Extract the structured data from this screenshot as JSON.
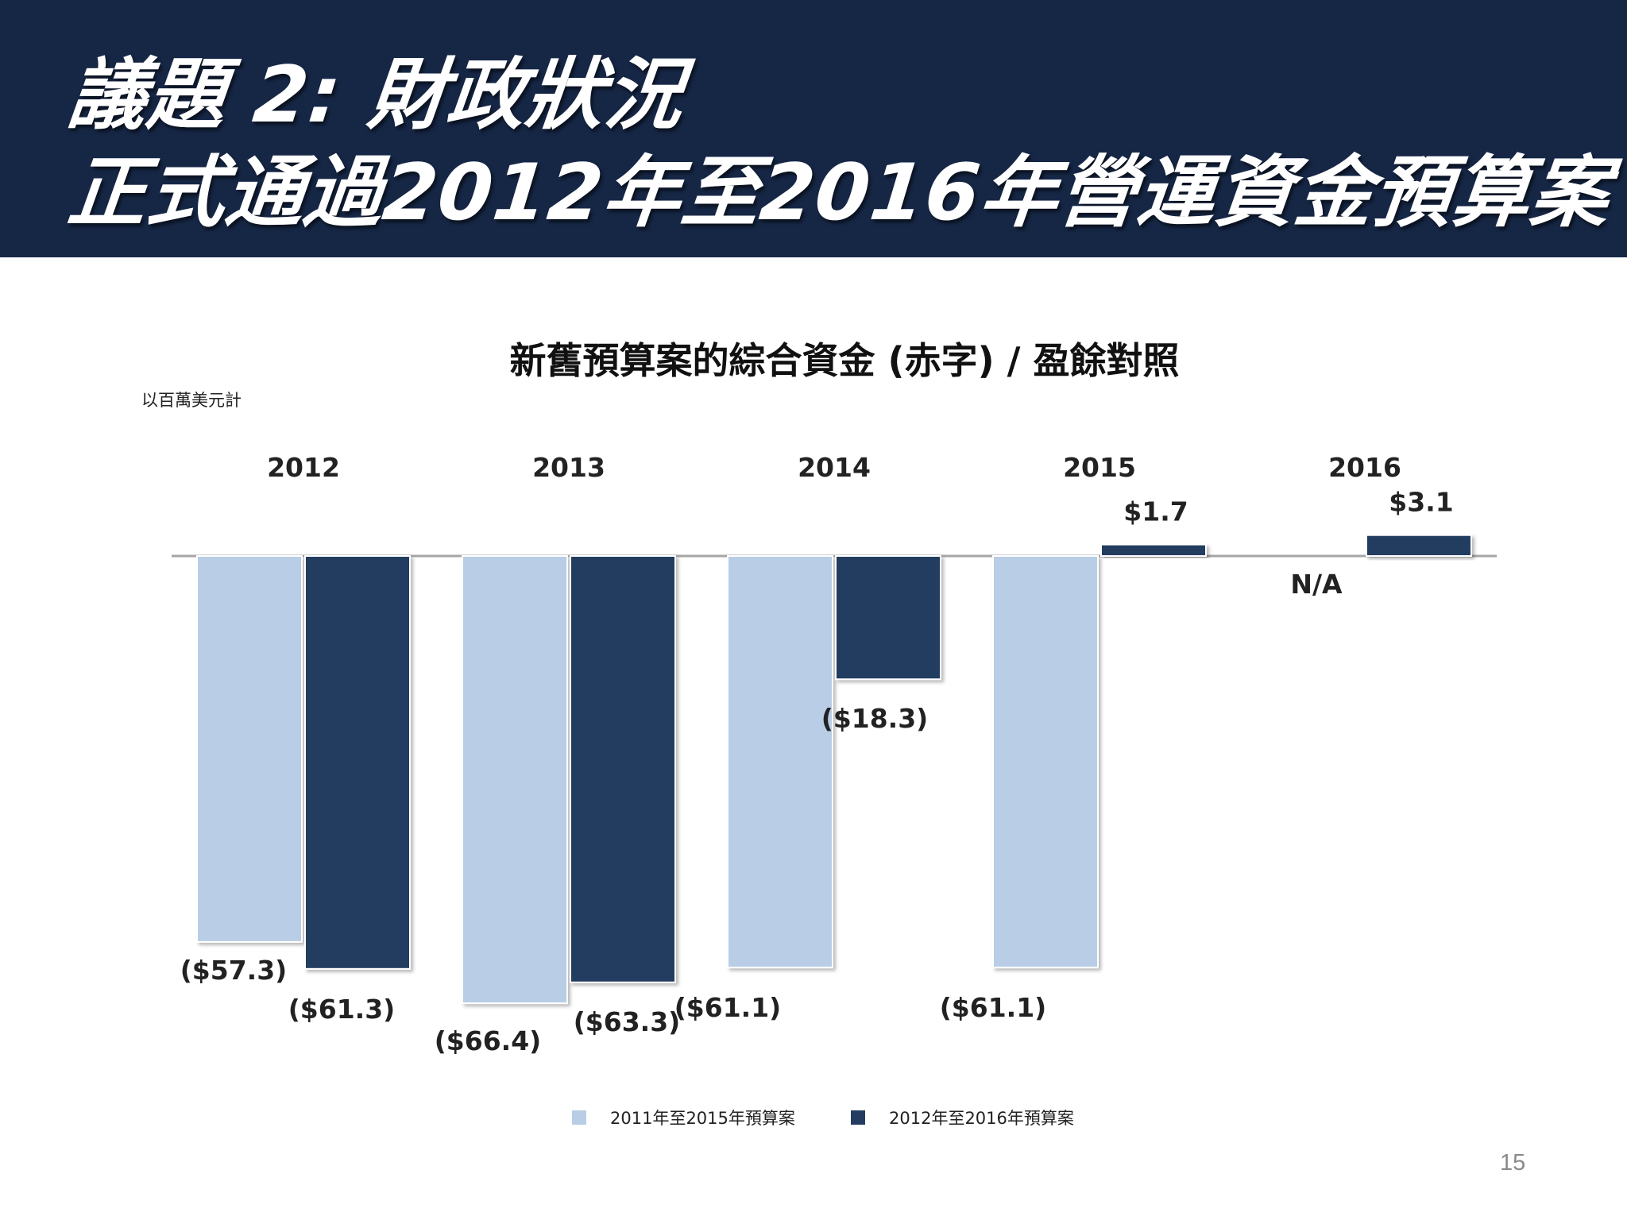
{
  "header": {
    "line1": "議題 2: 財政狀況",
    "line2": "正式通過2012年至2016年營運資金預算案"
  },
  "chart_title": "新舊預算案的綜合資金 (赤字) / 盈餘對照",
  "units_note": "以百萬美元計",
  "page_number": "15",
  "colors": {
    "header_bg": "#162746",
    "series_light": "#b9cde6",
    "series_dark": "#243c60",
    "baseline": "#a6a6a6"
  },
  "chart_data": {
    "type": "bar",
    "categories": [
      "2012",
      "2013",
      "2014",
      "2015",
      "2016"
    ],
    "series": [
      {
        "name": "2011年至2015年預算案",
        "values": [
          -57.3,
          -66.4,
          -61.1,
          -61.1,
          null
        ],
        "labels": [
          "($57.3)",
          "($66.4)",
          "($61.1)",
          "($61.1)",
          "N/A"
        ]
      },
      {
        "name": "2012年至2016年預算案",
        "values": [
          -61.3,
          -63.3,
          -18.3,
          1.7,
          3.1
        ],
        "labels": [
          "($61.3)",
          "($63.3)",
          "($18.3)",
          "$1.7",
          "$3.1"
        ]
      }
    ],
    "title": "新舊預算案的綜合資金 (赤字) / 盈餘對照",
    "ylabel": "以百萬美元計",
    "legend_position": "bottom",
    "grid": false
  },
  "legend": [
    {
      "label": "2011年至2015年預算案",
      "color": "#b9cde6"
    },
    {
      "label": "2012年至2016年預算案",
      "color": "#243c60"
    }
  ]
}
